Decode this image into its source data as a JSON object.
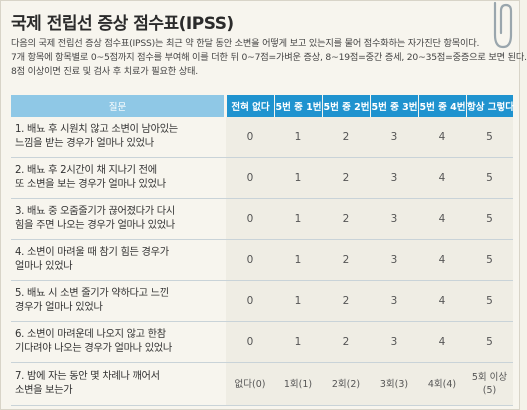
{
  "title": "국제 전립선 증상 점수표(IPSS)",
  "description": [
    "다음의 국제 전립선 증상 점수표(IPSS)는 최근 약 한달 동안 소변을 어떻게 보고 있는지를 물어 점수화하는 자가진단 항목이다.",
    "7개 항목에 항목별로 0~5점까지 점수를 부여해 이를 더한 뒤 0~7점=가벼운 증상, 8~19점=중간 증세, 20~35점=중증으로 보면 된다.",
    "8점 이상이면 진료 및 검사 후 치료가 필요한 상태."
  ],
  "table": {
    "headers": [
      "질문",
      "전혀 없다",
      "5번 중 1번",
      "5번 중 2번",
      "5번 중 3번",
      "5번 중 4번",
      "항상 그렇다"
    ],
    "rows": [
      {
        "question": [
          "1. 배뇨 후 시원치 않고 소변이 남아있는",
          "느낌을 받는 경우가 얼마나 있었나"
        ],
        "scores": [
          "0",
          "1",
          "2",
          "3",
          "4",
          "5"
        ]
      },
      {
        "question": [
          "2. 배뇨 후 2시간이 채 지나기 전에",
          "또 소변을 보는 경우가 얼마나 있었나"
        ],
        "scores": [
          "0",
          "1",
          "2",
          "3",
          "4",
          "5"
        ]
      },
      {
        "question": [
          "3. 배뇨 중 오줌줄기가 끊어졌다가 다시",
          "힘을 주면 나오는 경우가 얼마나 있었나"
        ],
        "scores": [
          "0",
          "1",
          "2",
          "3",
          "4",
          "5"
        ]
      },
      {
        "question": [
          "4. 소변이 마려울 때 참기 힘든 경우가",
          "얼마나 있었나"
        ],
        "scores": [
          "0",
          "1",
          "2",
          "3",
          "4",
          "5"
        ]
      },
      {
        "question": [
          "5. 배뇨 시 소변 줄기가 약하다고 느낀",
          "경우가 얼마나 있었나"
        ],
        "scores": [
          "0",
          "1",
          "2",
          "3",
          "4",
          "5"
        ]
      },
      {
        "question": [
          "6. 소변이 마려운데 나오지 않고 한참",
          "기다려야 나오는 경우가 얼마나 있었나"
        ],
        "scores": [
          "0",
          "1",
          "2",
          "3",
          "4",
          "5"
        ]
      },
      {
        "question": [
          "7. 밤에 자는 동안 몇 차례나 깨어서",
          "소변을 보는가"
        ],
        "scores": [
          "없다(0)",
          "1회(1)",
          "2회(2)",
          "3회(3)",
          "4회(4)",
          "5회 이상 (5)"
        ]
      }
    ]
  },
  "colors": {
    "header_question": "#8fc8e6",
    "header_score": "#1f93cf",
    "background": "#f7f5ee"
  },
  "icons": [
    "paperclip-icon"
  ]
}
